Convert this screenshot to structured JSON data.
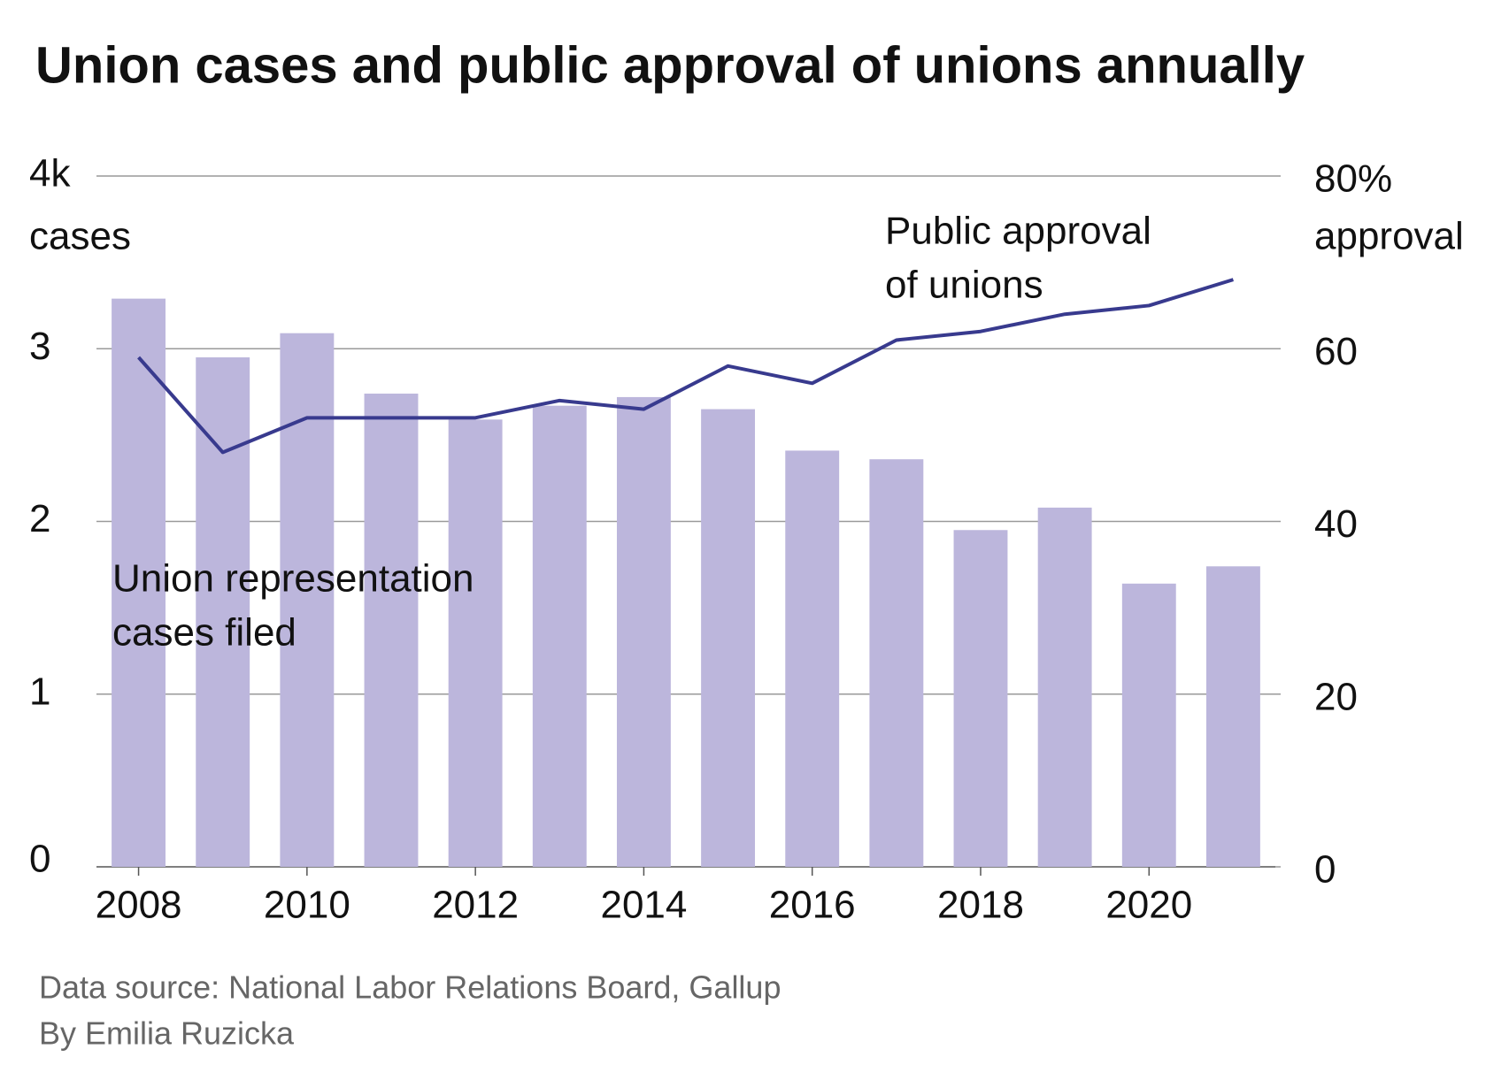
{
  "chart_data": {
    "type": "bar_line",
    "title": "Union cases and public approval of unions annually",
    "ylabel": "cases",
    "y2label": "approval",
    "x": [
      2008,
      2009,
      2010,
      2011,
      2012,
      2013,
      2014,
      2015,
      2016,
      2017,
      2018,
      2019,
      2020,
      2021
    ],
    "xlim": [
      2007.5,
      2021.5
    ],
    "xticks": [
      2008,
      2010,
      2012,
      2014,
      2016,
      2018,
      2020
    ],
    "ylim": [
      0,
      4
    ],
    "yticks": [
      0,
      1,
      2,
      3,
      {
        "value": 4,
        "label": "4k"
      }
    ],
    "y2lim": [
      0,
      80
    ],
    "y2ticks": [
      0,
      20,
      40,
      60,
      {
        "value": 80,
        "label": "80%"
      }
    ],
    "grid": true,
    "series": [
      {
        "kind": "bar",
        "color": "#bcb6dc",
        "values": [
          3.29,
          2.95,
          3.09,
          2.74,
          2.59,
          2.67,
          2.72,
          2.65,
          2.41,
          2.36,
          1.95,
          2.08,
          1.64,
          1.74
        ]
      },
      {
        "kind": "line",
        "axis": "y2",
        "color": "#383a8e",
        "values": [
          59,
          48,
          52,
          52,
          52,
          54,
          53,
          58,
          56,
          61,
          62,
          64,
          65,
          68
        ]
      }
    ],
    "annotations": [
      {
        "lines": [
          "Union representation",
          "cases filed"
        ]
      },
      {
        "lines": [
          "Public approval",
          "of unions"
        ]
      }
    ],
    "source": "Data source: National Labor Relations Board, Gallup",
    "byline": "By Emilia Ruzicka"
  }
}
